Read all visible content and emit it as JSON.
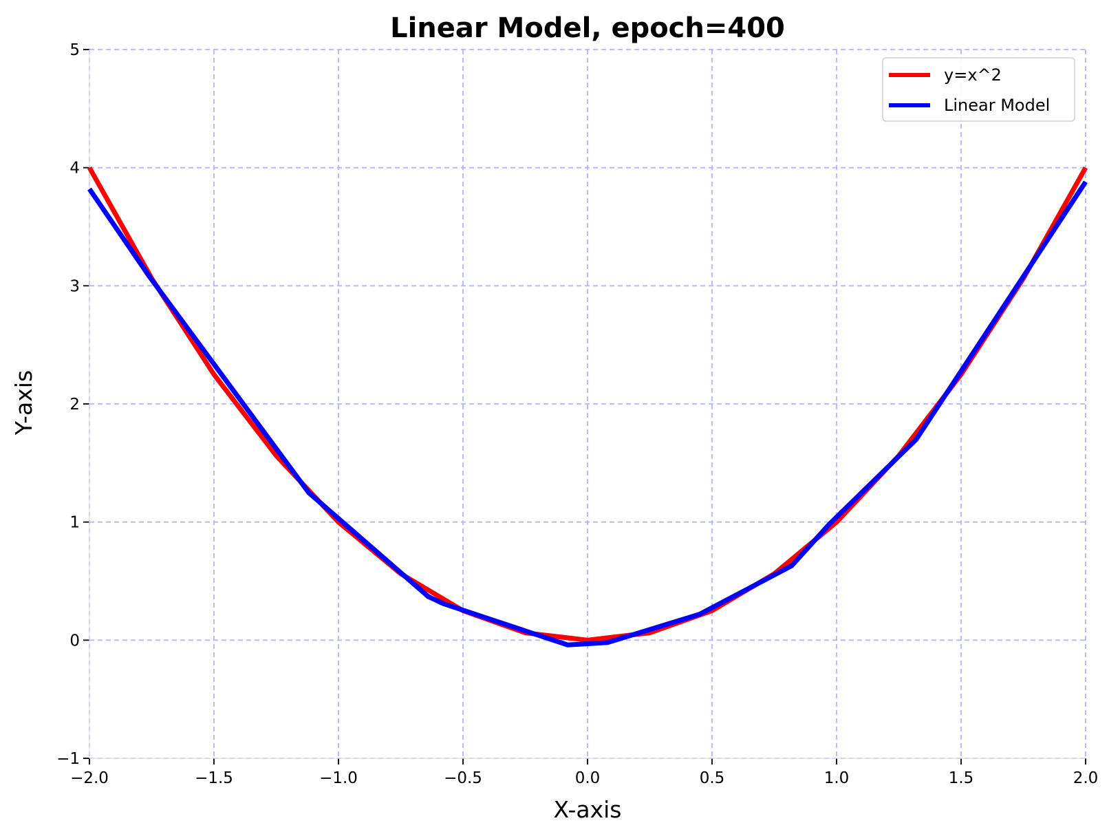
{
  "chart_data": {
    "type": "line",
    "title": "Linear Model, epoch=400",
    "xlabel": "X-axis",
    "ylabel": "Y-axis",
    "xlim": [
      -2.0,
      2.0
    ],
    "ylim": [
      -1,
      5
    ],
    "xticks": [
      "−2.0",
      "−1.5",
      "−1.0",
      "−0.5",
      "0.0",
      "0.5",
      "1.0",
      "1.5",
      "2.0"
    ],
    "yticks": [
      "−1",
      "0",
      "1",
      "2",
      "3",
      "4",
      "5"
    ],
    "grid": true,
    "legend_position": "top-right",
    "series": [
      {
        "name": "y=x^2",
        "color": "#ff0000",
        "x": [
          -2.0,
          -1.75,
          -1.5,
          -1.25,
          -1.0,
          -0.75,
          -0.5,
          -0.25,
          0.0,
          0.25,
          0.5,
          0.75,
          1.0,
          1.25,
          1.5,
          1.75,
          2.0
        ],
        "y": [
          4.0,
          3.0625,
          2.25,
          1.5625,
          1.0,
          0.5625,
          0.25,
          0.0625,
          0.0,
          0.0625,
          0.25,
          0.5625,
          1.0,
          1.5625,
          2.25,
          3.0625,
          4.0
        ]
      },
      {
        "name": "Linear Model",
        "color": "#0000ff",
        "x": [
          -2.0,
          -1.76,
          -1.12,
          -0.64,
          -0.58,
          -0.08,
          0.08,
          0.45,
          0.82,
          0.97,
          1.32,
          2.0
        ],
        "y": [
          3.82,
          3.08,
          1.25,
          0.37,
          0.31,
          -0.04,
          -0.02,
          0.22,
          0.63,
          0.98,
          1.7,
          3.88
        ]
      }
    ]
  }
}
